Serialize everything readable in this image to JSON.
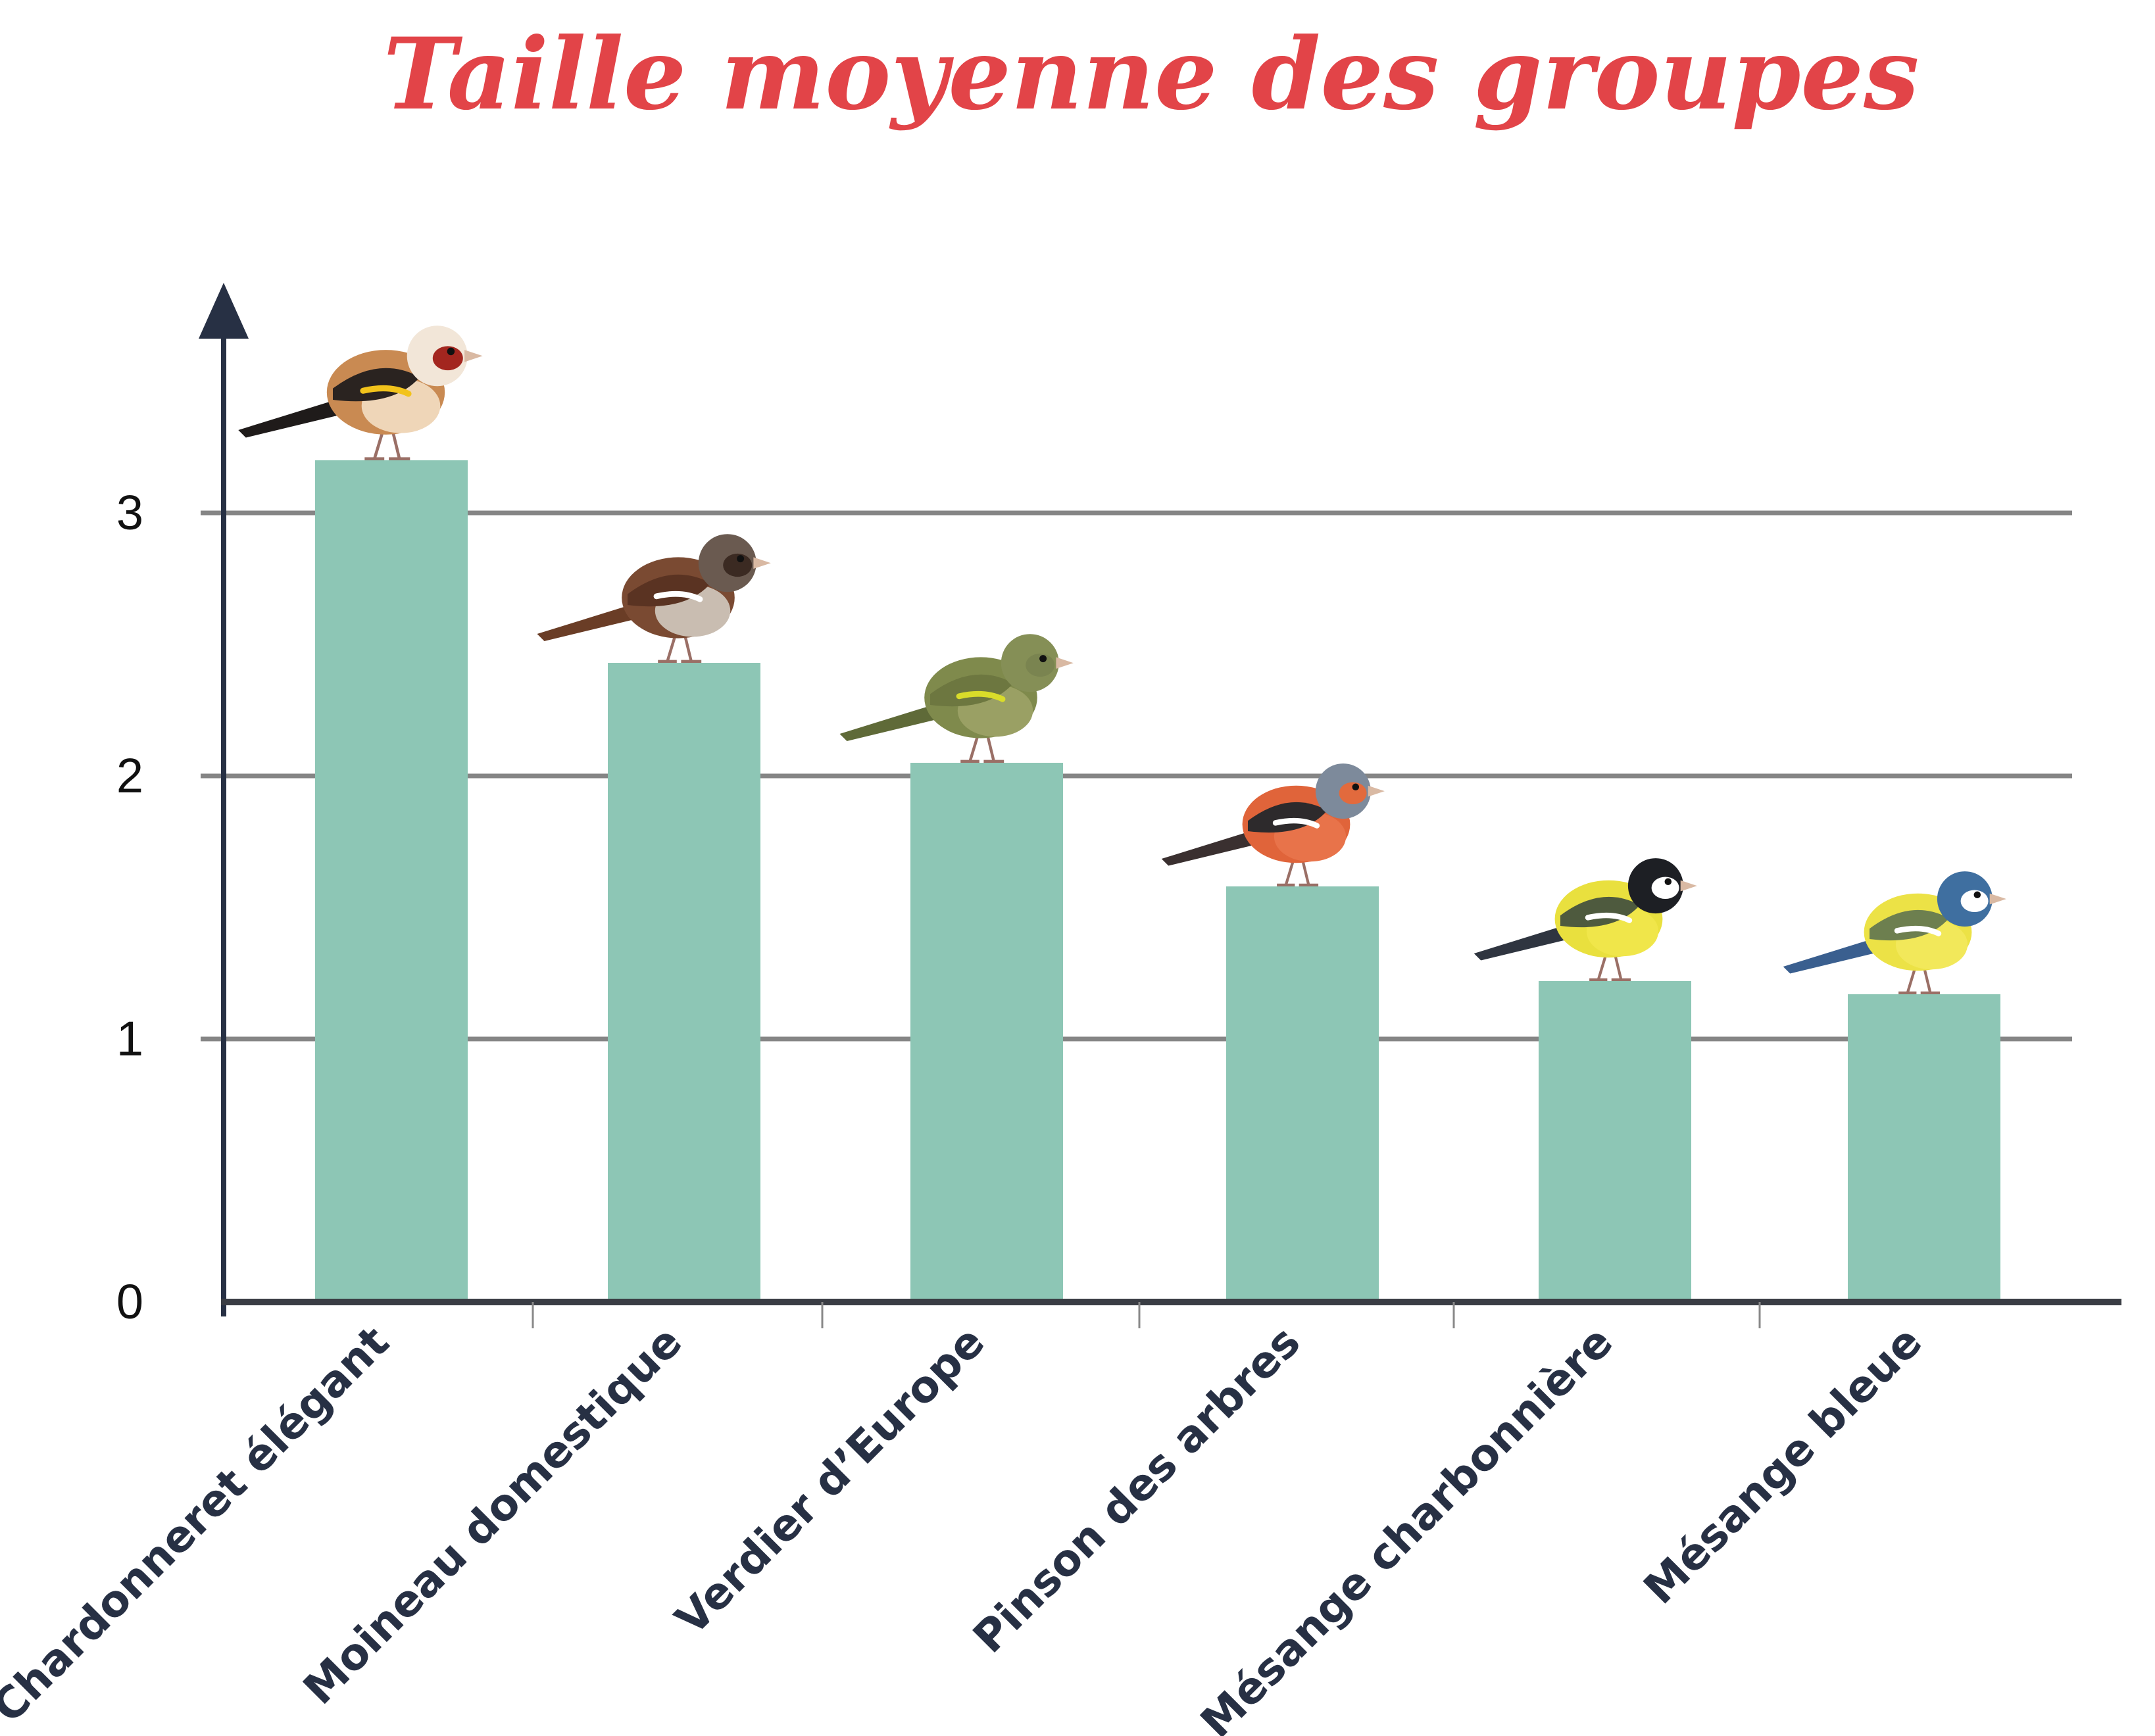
{
  "chart_data": {
    "type": "bar",
    "title": "Taille moyenne des groupes",
    "xlabel": "",
    "ylabel": "",
    "categories": [
      "Chardonneret élégant",
      "Moineau domestique",
      "Verdier d’Europe",
      "Pinson des arbres",
      "Mésange charbonnière",
      "Mésange bleue"
    ],
    "values": [
      3.2,
      2.43,
      2.05,
      1.58,
      1.22,
      1.17
    ],
    "yticks": [
      "0",
      "1",
      "2",
      "3"
    ],
    "ylim": [
      0,
      3.8
    ],
    "grid": true,
    "legend": "none",
    "bird_icons": [
      "goldfinch-icon",
      "sparrow-icon",
      "greenfinch-icon",
      "chaffinch-icon",
      "great-tit-icon",
      "blue-tit-icon"
    ]
  },
  "colors": {
    "title": "#e24448",
    "bar": "#8dc6b5",
    "axis": "#273044",
    "grid": "#858585",
    "label": "#273044"
  }
}
